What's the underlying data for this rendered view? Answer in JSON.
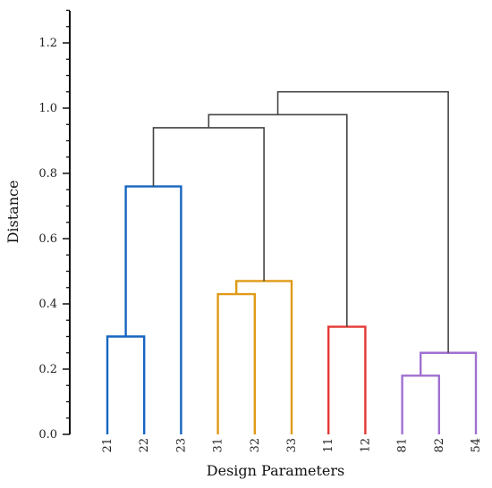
{
  "chart_data": {
    "type": "dendrogram",
    "xlabel": "Design Parameters",
    "ylabel": "Distance",
    "ylim": [
      0.0,
      1.3
    ],
    "yticks": [
      "0.0",
      "0.2",
      "0.4",
      "0.6",
      "0.8",
      "1.0",
      "1.2"
    ],
    "leaves": [
      "21",
      "22",
      "23",
      "31",
      "32",
      "33",
      "11",
      "12",
      "81",
      "82",
      "54"
    ],
    "merges": [
      {
        "left": "21",
        "right": "22",
        "height": 0.3,
        "color": "#1565c0"
      },
      {
        "left": "21+22",
        "right": "23",
        "height": 0.76,
        "color": "#1565c0"
      },
      {
        "left": "31",
        "right": "32",
        "height": 0.43,
        "color": "#e09a16"
      },
      {
        "left": "31+32",
        "right": "33",
        "height": 0.47,
        "color": "#e09a16"
      },
      {
        "left": "11",
        "right": "12",
        "height": 0.33,
        "color": "#e53935"
      },
      {
        "left": "81",
        "right": "82",
        "height": 0.18,
        "color": "#a070d0"
      },
      {
        "left": "81+82",
        "right": "54",
        "height": 0.25,
        "color": "#a070d0"
      },
      {
        "left": "2x",
        "right": "3x",
        "height": 0.94,
        "color": "#444444"
      },
      {
        "left": "2x+3x",
        "right": "11+12",
        "height": 0.98,
        "color": "#444444"
      },
      {
        "left": "2x+3x+1x",
        "right": "8x+54",
        "height": 1.05,
        "color": "#444444"
      }
    ],
    "grid": false,
    "legend": "none"
  }
}
